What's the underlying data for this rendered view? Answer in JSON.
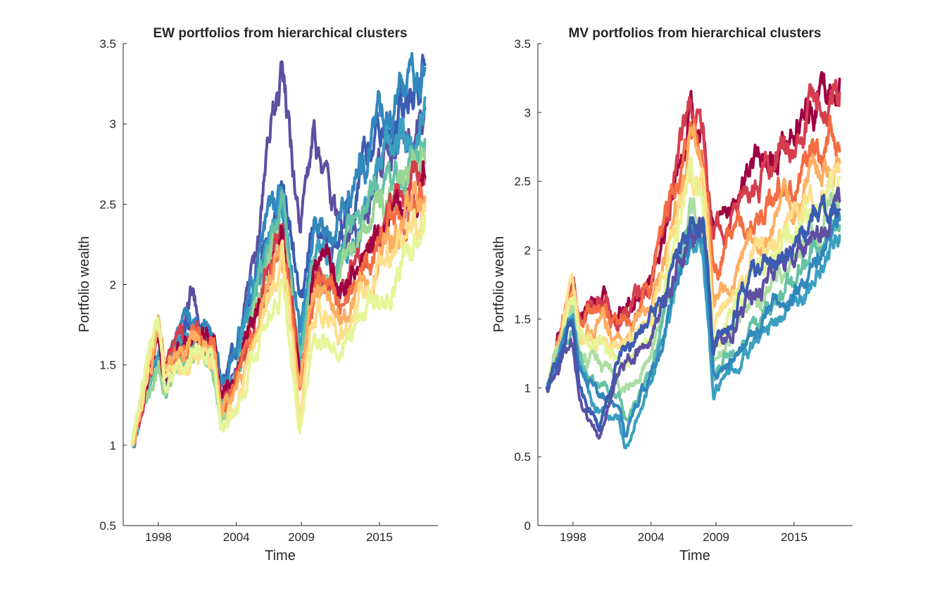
{
  "chart_data": [
    {
      "type": "line",
      "title": "EW portfolios from hierarchical clusters",
      "xlabel": "Time",
      "ylabel": "Portfolio wealth",
      "xlim": [
        1995.3,
        2019.5
      ],
      "ylim": [
        0.5,
        3.5
      ],
      "xticks": [
        1998,
        2004,
        2009,
        2015
      ],
      "xtick_labels": [
        "1998",
        "2004",
        "2009",
        "2015"
      ],
      "yticks": [
        0.5,
        1,
        1.5,
        2,
        2.5,
        3,
        3.5
      ],
      "ytick_labels": [
        "0.5",
        "1",
        "1.5",
        "2",
        "2.5",
        "3",
        "3.5"
      ],
      "grid": false,
      "colormap": "Spectral (purple / blue / teal / yellow / orange / dark red)",
      "anchor_x": [
        1996.0,
        1998.0,
        1998.5,
        2000.5,
        2002.3,
        2002.8,
        2004.0,
        2007.5,
        2008.9,
        2010.0,
        2011.3,
        2012.0,
        2015.0,
        2018.5
      ],
      "series": [
        {
          "color": "#5e4fa2",
          "values": [
            1.0,
            1.7,
            1.35,
            1.95,
            1.55,
            1.25,
            1.5,
            3.3,
            2.4,
            2.85,
            2.55,
            2.3,
            2.6,
            3.1
          ]
        },
        {
          "color": "#3b5cb0",
          "values": [
            1.0,
            1.62,
            1.45,
            1.78,
            1.55,
            1.3,
            1.55,
            2.7,
            1.9,
            2.4,
            2.1,
            2.4,
            2.9,
            3.35
          ]
        },
        {
          "color": "#3288bd",
          "values": [
            1.0,
            1.65,
            1.5,
            1.8,
            1.62,
            1.35,
            1.6,
            2.65,
            1.65,
            2.35,
            2.3,
            2.45,
            3.0,
            3.3
          ]
        },
        {
          "color": "#3a9fc0",
          "values": [
            1.0,
            1.6,
            1.42,
            1.72,
            1.55,
            1.25,
            1.55,
            2.55,
            1.6,
            2.2,
            2.1,
            2.2,
            2.65,
            3.05
          ]
        },
        {
          "color": "#66c2a5",
          "values": [
            1.0,
            1.58,
            1.4,
            1.7,
            1.5,
            1.2,
            1.5,
            2.45,
            1.5,
            2.1,
            2.05,
            2.15,
            2.55,
            2.9
          ]
        },
        {
          "color": "#99d594",
          "values": [
            1.0,
            1.55,
            1.38,
            1.66,
            1.48,
            1.2,
            1.45,
            2.4,
            1.45,
            2.05,
            2.0,
            2.05,
            2.45,
            2.8
          ]
        },
        {
          "color": "#d53e4f",
          "values": [
            1.0,
            1.73,
            1.45,
            1.7,
            1.6,
            1.25,
            1.4,
            2.35,
            1.4,
            2.1,
            2.1,
            1.95,
            2.3,
            2.7
          ]
        },
        {
          "color": "#9e0142",
          "values": [
            1.0,
            1.75,
            1.46,
            1.72,
            1.62,
            1.27,
            1.42,
            2.36,
            1.42,
            2.12,
            2.12,
            1.97,
            2.32,
            2.72
          ]
        },
        {
          "color": "#f46d43",
          "values": [
            1.0,
            1.7,
            1.43,
            1.66,
            1.57,
            1.22,
            1.35,
            2.28,
            1.35,
            2.02,
            2.0,
            1.88,
            2.25,
            2.62
          ]
        },
        {
          "color": "#fdae61",
          "values": [
            1.0,
            1.68,
            1.4,
            1.62,
            1.52,
            1.18,
            1.3,
            2.22,
            1.3,
            1.95,
            1.92,
            1.8,
            2.18,
            2.55
          ]
        },
        {
          "color": "#fee08b",
          "values": [
            1.0,
            1.72,
            1.38,
            1.6,
            1.48,
            1.12,
            1.25,
            2.15,
            1.22,
            1.85,
            1.82,
            1.7,
            2.08,
            2.45
          ]
        },
        {
          "color": "#e6f598",
          "values": [
            1.0,
            1.8,
            1.35,
            1.55,
            1.45,
            1.05,
            1.2,
            2.05,
            1.15,
            1.7,
            1.6,
            1.55,
            1.95,
            2.35
          ]
        }
      ]
    },
    {
      "type": "line",
      "title": "MV portfolios from hierarchical clusters",
      "xlabel": "Time",
      "ylabel": "Portfolio wealth",
      "xlim": [
        1995.3,
        2019.5
      ],
      "ylim": [
        0,
        3.5
      ],
      "xticks": [
        1998,
        2004,
        2009,
        2015
      ],
      "xtick_labels": [
        "1998",
        "2004",
        "2009",
        "2015"
      ],
      "yticks": [
        0,
        0.5,
        1,
        1.5,
        2,
        2.5,
        3,
        3.5
      ],
      "ytick_labels": [
        "0",
        "0.5",
        "1",
        "1.5",
        "2",
        "2.5",
        "3",
        "3.5"
      ],
      "grid": false,
      "colormap": "Spectral (purple / blue / teal / yellow / orange / dark red)",
      "anchor_x": [
        1996.0,
        1998.0,
        1998.5,
        2000.0,
        2001.5,
        2002.0,
        2004.0,
        2007.0,
        2008.0,
        2008.8,
        2012.0,
        2015.0,
        2018.5
      ],
      "series": [
        {
          "color": "#9e0142",
          "values": [
            1.0,
            1.8,
            1.55,
            1.65,
            1.55,
            1.6,
            1.85,
            3.0,
            2.9,
            2.2,
            2.6,
            2.9,
            3.35
          ]
        },
        {
          "color": "#d53e4f",
          "values": [
            1.0,
            1.78,
            1.52,
            1.62,
            1.5,
            1.55,
            1.8,
            2.95,
            2.8,
            2.1,
            2.5,
            2.8,
            3.2
          ]
        },
        {
          "color": "#f46d43",
          "values": [
            1.0,
            1.75,
            1.48,
            1.55,
            1.45,
            1.48,
            1.7,
            2.85,
            2.7,
            1.85,
            2.25,
            2.5,
            2.9
          ]
        },
        {
          "color": "#fdae61",
          "values": [
            1.0,
            1.72,
            1.45,
            1.48,
            1.4,
            1.4,
            1.6,
            2.75,
            2.6,
            1.6,
            2.1,
            2.3,
            2.7
          ]
        },
        {
          "color": "#fee08b",
          "values": [
            1.0,
            1.68,
            1.4,
            1.4,
            1.3,
            1.3,
            1.5,
            2.6,
            2.45,
            1.45,
            1.95,
            2.2,
            2.55
          ]
        },
        {
          "color": "#e6f598",
          "values": [
            1.0,
            1.65,
            1.35,
            1.3,
            1.2,
            1.2,
            1.4,
            2.45,
            2.3,
            1.35,
            1.85,
            2.1,
            2.45
          ]
        },
        {
          "color": "#abdda4",
          "values": [
            1.0,
            1.6,
            1.3,
            1.15,
            1.05,
            0.95,
            1.25,
            2.3,
            2.2,
            1.2,
            1.65,
            1.95,
            2.3
          ]
        },
        {
          "color": "#66c2a5",
          "values": [
            1.0,
            1.55,
            1.2,
            1.0,
            0.9,
            0.75,
            1.15,
            2.2,
            2.1,
            1.1,
            1.45,
            1.8,
            2.15
          ]
        },
        {
          "color": "#3a9fc0",
          "values": [
            1.0,
            1.5,
            1.1,
            0.85,
            0.8,
            0.55,
            1.05,
            2.05,
            2.0,
            1.0,
            1.3,
            1.65,
            2.05
          ]
        },
        {
          "color": "#3288bd",
          "values": [
            1.0,
            1.52,
            1.15,
            0.95,
            0.85,
            0.65,
            1.1,
            2.1,
            2.05,
            1.05,
            1.4,
            1.75,
            2.15
          ]
        },
        {
          "color": "#5e4fa2",
          "values": [
            1.0,
            1.45,
            0.95,
            0.6,
            1.1,
            1.2,
            1.4,
            2.15,
            2.2,
            1.25,
            1.7,
            2.0,
            2.3
          ]
        },
        {
          "color": "#3b5cb0",
          "values": [
            1.0,
            1.48,
            1.0,
            0.75,
            1.2,
            1.25,
            1.45,
            2.2,
            2.25,
            1.3,
            1.8,
            2.1,
            2.4
          ]
        }
      ]
    }
  ]
}
